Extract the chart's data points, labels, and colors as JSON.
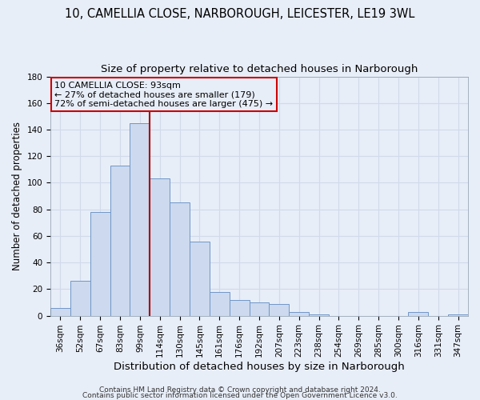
{
  "title1": "10, CAMELLIA CLOSE, NARBOROUGH, LEICESTER, LE19 3WL",
  "title2": "Size of property relative to detached houses in Narborough",
  "xlabel": "Distribution of detached houses by size in Narborough",
  "ylabel": "Number of detached properties",
  "bar_labels": [
    "36sqm",
    "52sqm",
    "67sqm",
    "83sqm",
    "99sqm",
    "114sqm",
    "130sqm",
    "145sqm",
    "161sqm",
    "176sqm",
    "192sqm",
    "207sqm",
    "223sqm",
    "238sqm",
    "254sqm",
    "269sqm",
    "285sqm",
    "300sqm",
    "316sqm",
    "331sqm",
    "347sqm"
  ],
  "bar_values": [
    6,
    26,
    78,
    113,
    145,
    103,
    85,
    56,
    18,
    12,
    10,
    9,
    3,
    1,
    0,
    0,
    0,
    0,
    3,
    0,
    1
  ],
  "bar_color": "#ccd9ee",
  "bar_edge_color": "#7096c8",
  "ylim": [
    0,
    180
  ],
  "yticks": [
    0,
    20,
    40,
    60,
    80,
    100,
    120,
    140,
    160,
    180
  ],
  "vline_x_idx": 4,
  "vline_color": "#aa0000",
  "annotation_line1": "10 CAMELLIA CLOSE: 93sqm",
  "annotation_line2": "← 27% of detached houses are smaller (179)",
  "annotation_line3": "72% of semi-detached houses are larger (475) →",
  "box_edge_color": "#cc0000",
  "footer1": "Contains HM Land Registry data © Crown copyright and database right 2024.",
  "footer2": "Contains public sector information licensed under the Open Government Licence v3.0.",
  "bg_color": "#e8eef8",
  "grid_color": "#d0daea",
  "title1_fontsize": 10.5,
  "title2_fontsize": 9.5,
  "xlabel_fontsize": 9.5,
  "ylabel_fontsize": 8.5,
  "tick_fontsize": 7.5,
  "annotation_fontsize": 8,
  "footer_fontsize": 6.5
}
